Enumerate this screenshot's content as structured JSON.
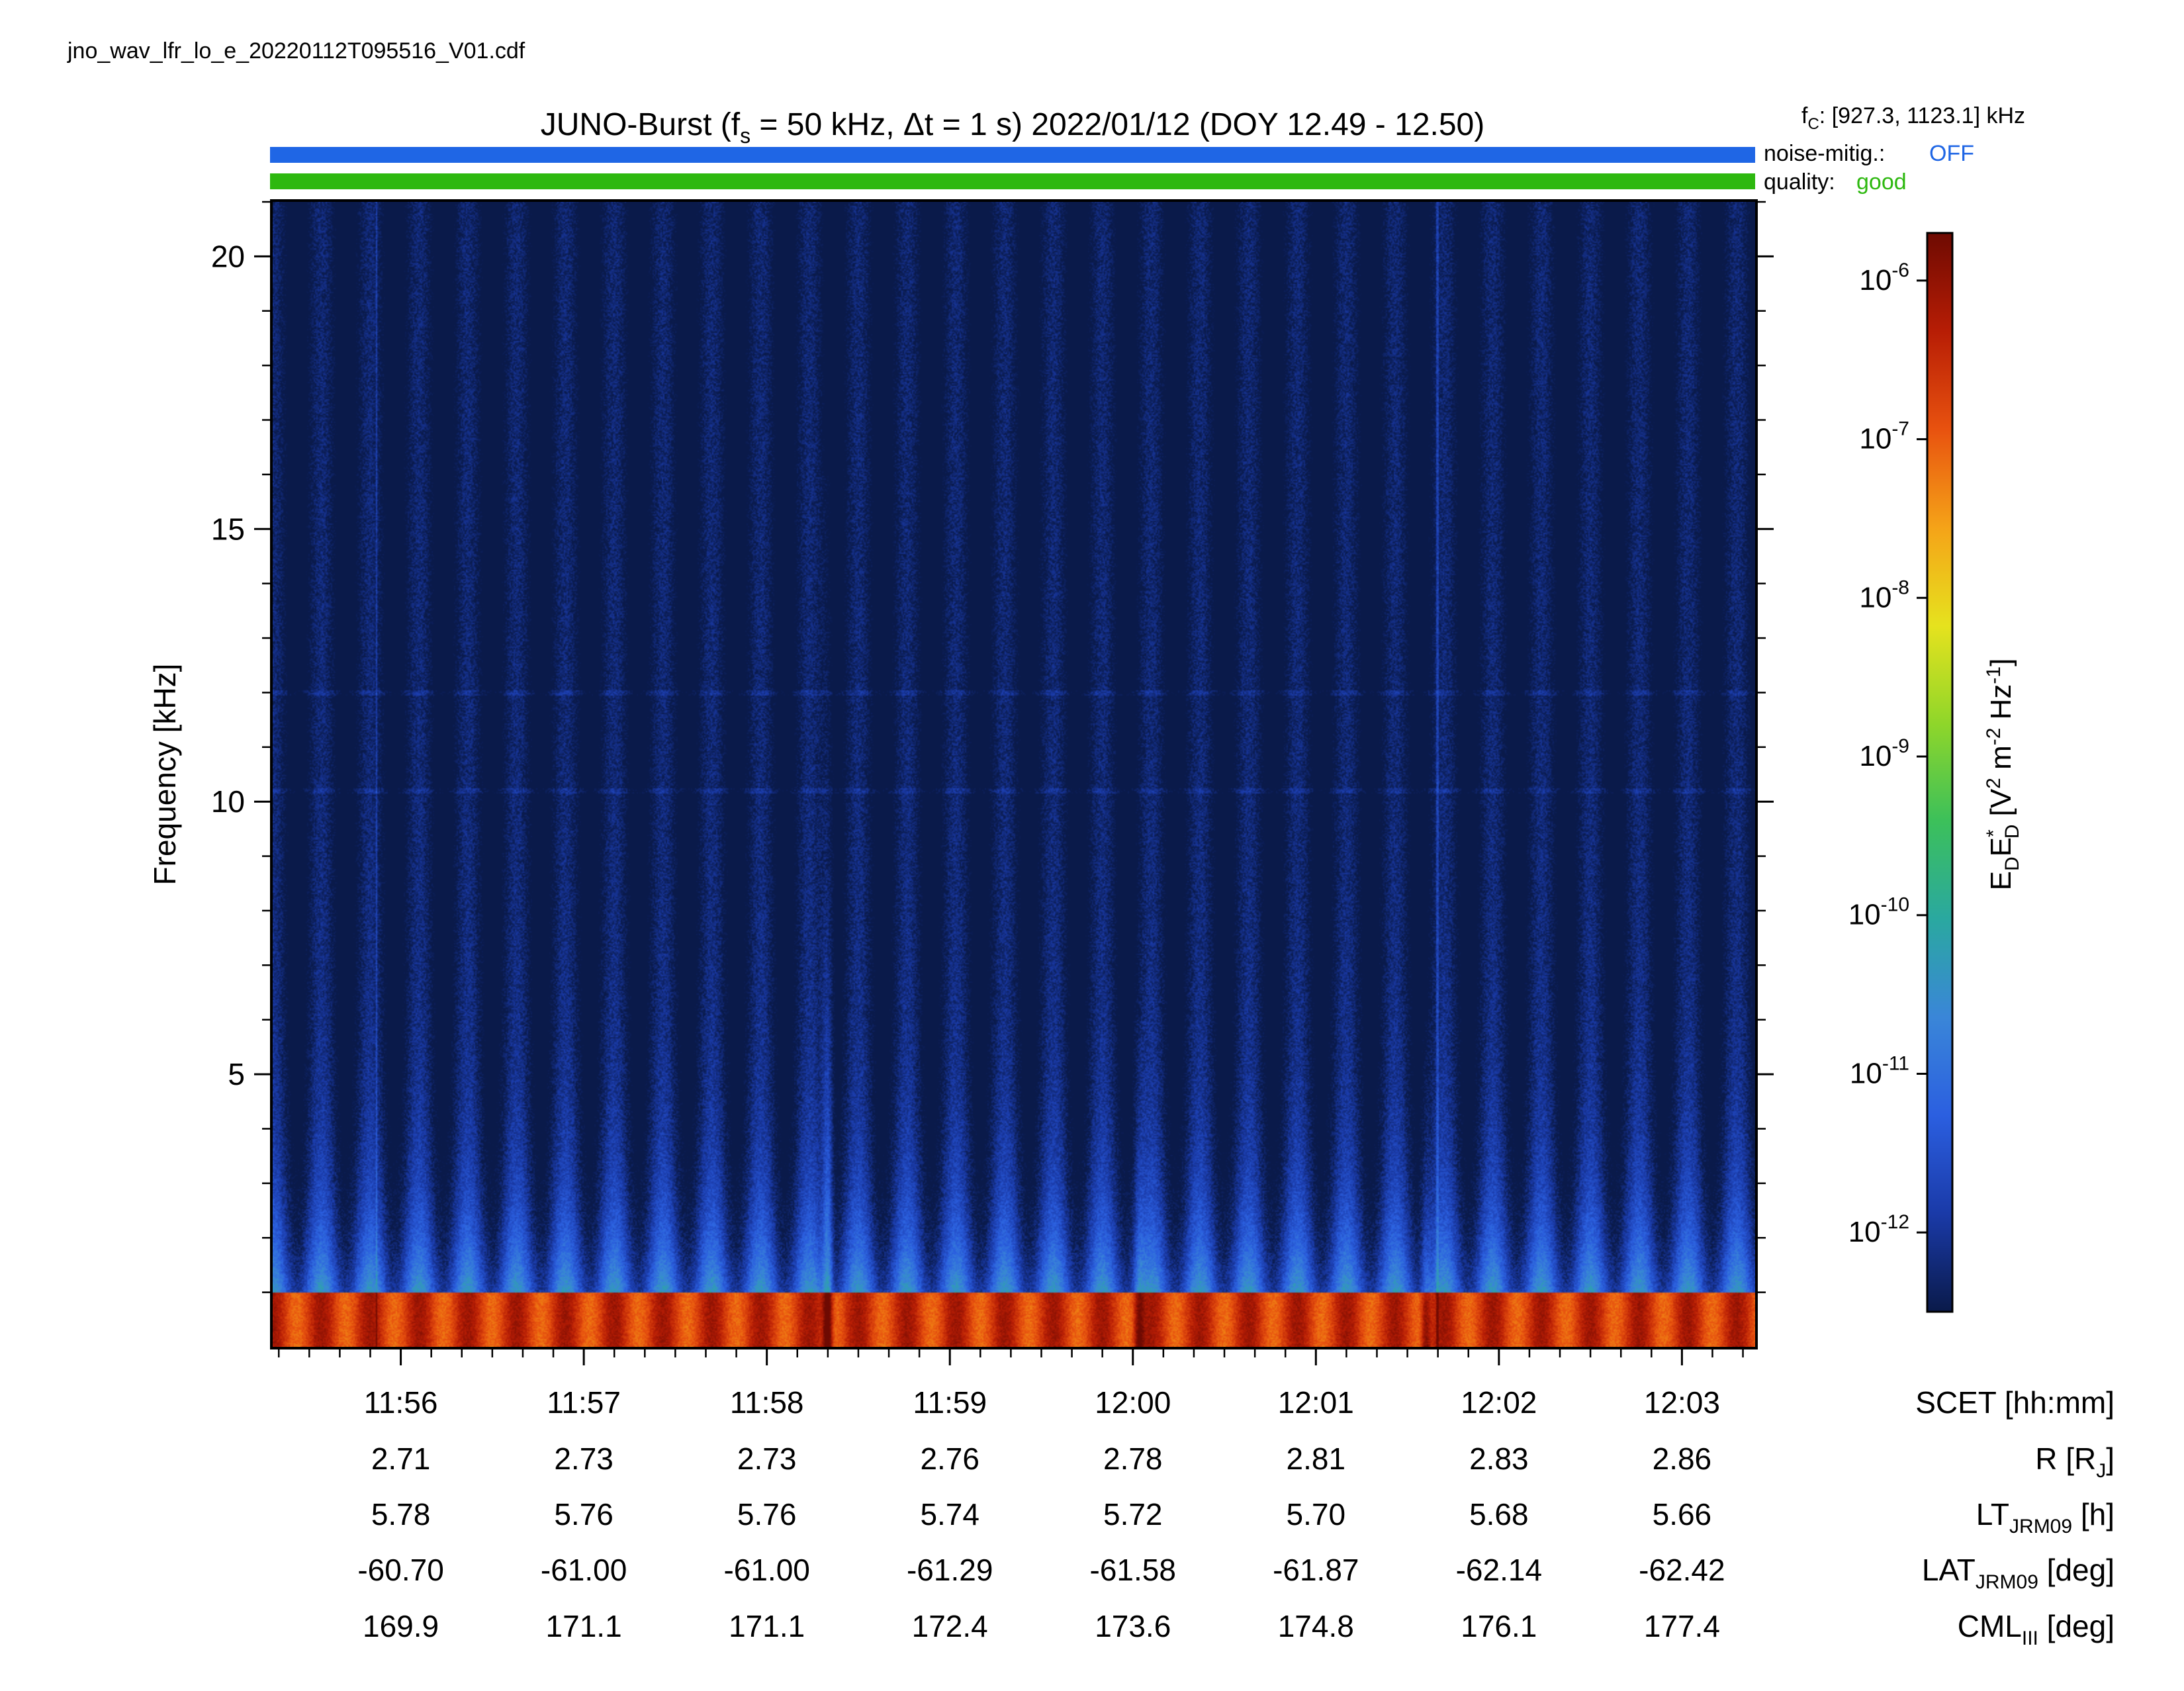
{
  "chart_data": {
    "type": "heatmap",
    "file_name": "jno_wav_lfr_lo_e_20220112T095516_V01.cdf",
    "title": {
      "prefix": "JUNO-Burst (f",
      "sub": "s",
      "middle": " = 50 kHz, Δt = 1 s)  2022/01/12 (DOY 12.49 - 12.50)"
    },
    "fc": {
      "label": "f",
      "sub": "C",
      "value": ": [927.3, 1123.1] kHz"
    },
    "noise_mitig": {
      "label": "noise-mitig.:",
      "value": "OFF",
      "color": "#1f66e5"
    },
    "quality": {
      "label": "quality:",
      "value": "good",
      "color": "#2db80f"
    },
    "ylabel": "Frequency [kHz]",
    "ylim": [
      0,
      21
    ],
    "yticks": [
      5,
      10,
      15,
      20
    ],
    "yticks_minor": [
      1,
      2,
      3,
      4,
      6,
      7,
      8,
      9,
      11,
      12,
      13,
      14,
      16,
      17,
      18,
      19,
      21
    ],
    "xlim_minutes": [
      715.3,
      723.4
    ],
    "x_major_minutes": [
      716,
      717,
      718,
      719,
      720,
      721,
      722,
      723
    ],
    "xtick_labels": [
      "11:56",
      "11:57",
      "11:58",
      "11:59",
      "12:00",
      "12:01",
      "12:02",
      "12:03"
    ],
    "ephemeris": [
      {
        "label_main": "SCET [hh:mm]",
        "label_sub": "",
        "label_tail": "",
        "values": [
          "11:56",
          "11:57",
          "11:58",
          "11:59",
          "12:00",
          "12:01",
          "12:02",
          "12:03"
        ]
      },
      {
        "label_main": "R [R",
        "label_sub": "J",
        "label_tail": "]",
        "values": [
          "2.71",
          "2.73",
          "2.73",
          "2.76",
          "2.78",
          "2.81",
          "2.83",
          "2.86"
        ]
      },
      {
        "label_main": "LT",
        "label_sub": "JRM09",
        "label_tail": " [h]",
        "values": [
          "5.78",
          "5.76",
          "5.76",
          "5.74",
          "5.72",
          "5.70",
          "5.68",
          "5.66"
        ]
      },
      {
        "label_main": "LAT",
        "label_sub": "JRM09",
        "label_tail": " [deg]",
        "values": [
          "-60.70",
          "-61.00",
          "-61.00",
          "-61.29",
          "-61.58",
          "-61.87",
          "-62.14",
          "-62.42"
        ]
      },
      {
        "label_main": "CML",
        "label_sub": "III",
        "label_tail": " [deg]",
        "values": [
          "169.9",
          "171.1",
          "171.1",
          "172.4",
          "173.6",
          "174.8",
          "176.1",
          "177.4"
        ]
      }
    ],
    "colorbar": {
      "label_parts": [
        "E",
        "D",
        "E",
        "*",
        "D",
        " [V",
        "2",
        " m",
        "-2",
        " Hz",
        "-1",
        "]"
      ],
      "exponents": [
        "-6",
        "-7",
        "-8",
        "-9",
        "-10",
        "-11",
        "-12"
      ],
      "range_log10": [
        -12.5,
        -5.7
      ],
      "colors": [
        "#0a1a4a",
        "#1a3aa8",
        "#2b5fe0",
        "#3a86d8",
        "#2aa8a0",
        "#3cc05a",
        "#8fd62a",
        "#e6e21e",
        "#f5a318",
        "#e8520f",
        "#b71d05",
        "#6e0a02"
      ]
    },
    "features": {
      "background_level_log10": -12.6,
      "banding_period_seconds": 16,
      "low_freq_band_khz": [
        0,
        1.0
      ],
      "burst_times": [
        "11:58:20",
        "12:00:02",
        "12:01:36"
      ],
      "vertical_lines": [
        "11:55:52",
        "12:01:40"
      ],
      "horizontal_lines_khz": [
        12,
        10.2
      ]
    }
  }
}
